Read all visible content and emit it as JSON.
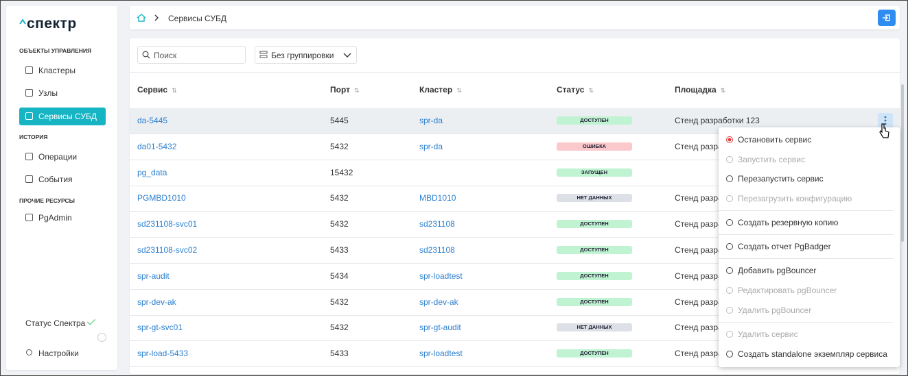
{
  "sidebar": {
    "logo": "спектр",
    "sections": [
      {
        "title": "ОБЪЕКТЫ УПРАВЛЕНИЯ",
        "items": [
          "Кластеры",
          "Узлы",
          "Сервисы СУБД"
        ]
      },
      {
        "title": "ИСТОРИЯ",
        "items": [
          "Операции",
          "События"
        ]
      },
      {
        "title": "ПРОЧИЕ РЕСУРСЫ",
        "items": [
          "PgAdmin"
        ]
      }
    ],
    "status": "Статус Спектра",
    "settings": "Настройки"
  },
  "breadcrumb": {
    "current": "Сервисы СУБД"
  },
  "toolbar": {
    "search_placeholder": "Поиск",
    "grouping": "Без группировки"
  },
  "table": {
    "columns": [
      "Сервис",
      "Порт",
      "Кластер",
      "Статус",
      "Площадка"
    ],
    "rows": [
      [
        "da-5445",
        5445,
        "spr-da",
        {
          "text": "ДОСТУПЕН",
          "color": "#bff3d2"
        },
        "Стенд разработки 123"
      ],
      [
        "da01-5432",
        5432,
        "spr-da",
        {
          "text": "ОШИБКА",
          "color": "#fbc8cc"
        },
        "Стенд разработки 123"
      ],
      [
        "pg_data",
        15432,
        null,
        {
          "text": "ЗАПУЩЕН",
          "color": "#bff3d2"
        },
        null
      ],
      [
        "PGMBD1010",
        5432,
        "MBD1010",
        {
          "text": "НЕТ ДАННЫХ",
          "color": "#dde1e7"
        },
        "Стенд разработки 123"
      ],
      [
        "sd231108-svc01",
        5432,
        "sd231108",
        {
          "text": "ДОСТУПЕН",
          "color": "#bff3d2"
        },
        "Стенд разработки 123"
      ],
      [
        "sd231108-svc02",
        5433,
        "sd231108",
        {
          "text": "ДОСТУПЕН",
          "color": "#bff3d2"
        },
        "Стенд разработки 123"
      ],
      [
        "spr-audit",
        5434,
        "spr-loadtest",
        {
          "text": "ДОСТУПЕН",
          "color": "#bff3d2"
        },
        "Стенд разработки 123"
      ],
      [
        "spr-dev-ak",
        5432,
        "spr-dev-ak",
        {
          "text": "ДОСТУПЕН",
          "color": "#bff3d2"
        },
        "Стенд разработки 123"
      ],
      [
        "spr-gt-svc01",
        5432,
        "spr-gt-audit",
        {
          "text": "НЕТ ДАННЫХ",
          "color": "#dde1e7"
        },
        "Стенд разработки 123"
      ],
      [
        "spr-load-5433",
        5433,
        "spr-loadtest",
        {
          "text": "ДОСТУПЕН",
          "color": "#bff3d2"
        },
        "Стенд разработки 123"
      ]
    ]
  },
  "menu": {
    "groups": [
      [
        {
          "text": "Остановить сервис",
          "enabled": true
        },
        {
          "text": "Запустить сервис",
          "enabled": false
        },
        {
          "text": "Перезапустить сервис",
          "enabled": true
        },
        {
          "text": "Перезагрузить конфигурацию",
          "enabled": false
        }
      ],
      [
        {
          "text": "Создать резервную копию",
          "enabled": true
        }
      ],
      [
        {
          "text": "Создать отчет PgBadger",
          "enabled": true
        }
      ],
      [
        {
          "text": "Добавить pgBouncer",
          "enabled": true
        },
        {
          "text": "Редактировать pgBouncer",
          "enabled": false
        },
        {
          "text": "Удалить pgBouncer",
          "enabled": false
        }
      ],
      [
        {
          "text": "Удалить сервис",
          "enabled": false
        },
        {
          "text": "Создать standalone экземпляр сервиса",
          "enabled": true
        }
      ]
    ]
  }
}
